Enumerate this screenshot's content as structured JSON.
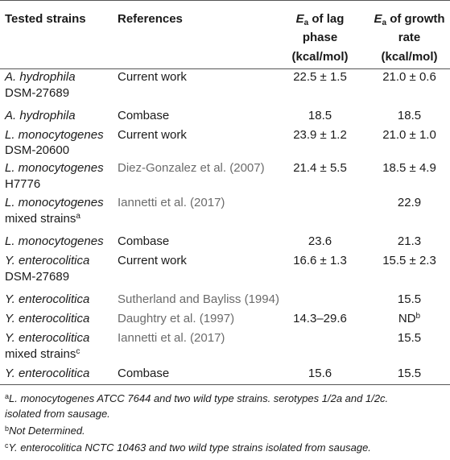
{
  "header": {
    "col1": "Tested strains",
    "col2": "References",
    "col3": {
      "e": "E",
      "sub": "a",
      "rest1": " of lag",
      "rest2": "phase",
      "unit": "(kcal/mol)"
    },
    "col4": {
      "e": "E",
      "sub": "a",
      "rest1": " of growth",
      "rest2": "rate",
      "unit": "(kcal/mol)"
    }
  },
  "rows": [
    {
      "strain": "A. hydrophila",
      "strain2": "DSM-27689",
      "ref": "Current work",
      "lag": "22.5 ± 1.5",
      "growth": "21.0 ± 0.6"
    },
    {
      "strain": "A. hydrophila",
      "strain2": "",
      "ref": "Combase",
      "lag": "18.5",
      "growth": "18.5"
    },
    {
      "strain": "L. monocytogenes",
      "strain2": "DSM-20600",
      "ref": "Current work",
      "lag": "23.9 ± 1.2",
      "growth": "21.0 ± 1.0"
    },
    {
      "strain": "L. monocytogenes",
      "strain2": "H7776",
      "ref": "Diez-Gonzalez et al. (2007)",
      "lag": "21.4 ± 5.5",
      "growth": "18.5 ± 4.9"
    },
    {
      "strain": "L. monocytogenes",
      "strain2": "mixed strains",
      "strain2_sup": "a",
      "ref": "Iannetti et al. (2017)",
      "lag": "",
      "growth": "22.9"
    },
    {
      "strain": "L. monocytogenes",
      "strain2": "",
      "ref": "Combase",
      "lag": "23.6",
      "growth": "21.3"
    },
    {
      "strain": "Y. enterocolitica",
      "strain2": "DSM-27689",
      "ref": "Current work",
      "lag": "16.6 ± 1.3",
      "growth": "15.5 ± 2.3"
    },
    {
      "strain": "Y. enterocolitica",
      "strain2": "",
      "ref": "Sutherland and Bayliss (1994)",
      "lag": "",
      "growth": "15.5"
    },
    {
      "strain": "Y. enterocolitica",
      "strain2": "",
      "ref": "Daughtry et al. (1997)",
      "lag": "14.3–29.6",
      "growth": "ND",
      "growth_sup": "b"
    },
    {
      "strain": "Y. enterocolitica",
      "strain2": "mixed strains",
      "strain2_sup": "c",
      "ref": "Iannetti et al. (2017)",
      "lag": "",
      "growth": "15.5"
    },
    {
      "strain": "Y. enterocolitica",
      "strain2": "",
      "ref": "Combase",
      "lag": "15.6",
      "growth": "15.5"
    }
  ],
  "footnotes": {
    "a_sup": "a",
    "a_line1": "L. monocytogenes ATCC 7644 and two wild type strains. serotypes 1/2a and 1/2c.",
    "a_line2": "isolated from sausage.",
    "b_sup": "b",
    "b_text": "Not Determined.",
    "c_sup": "c",
    "c_text": "Y. enterocolitica NCTC 10463 and two wild type strains isolated from sausage."
  }
}
